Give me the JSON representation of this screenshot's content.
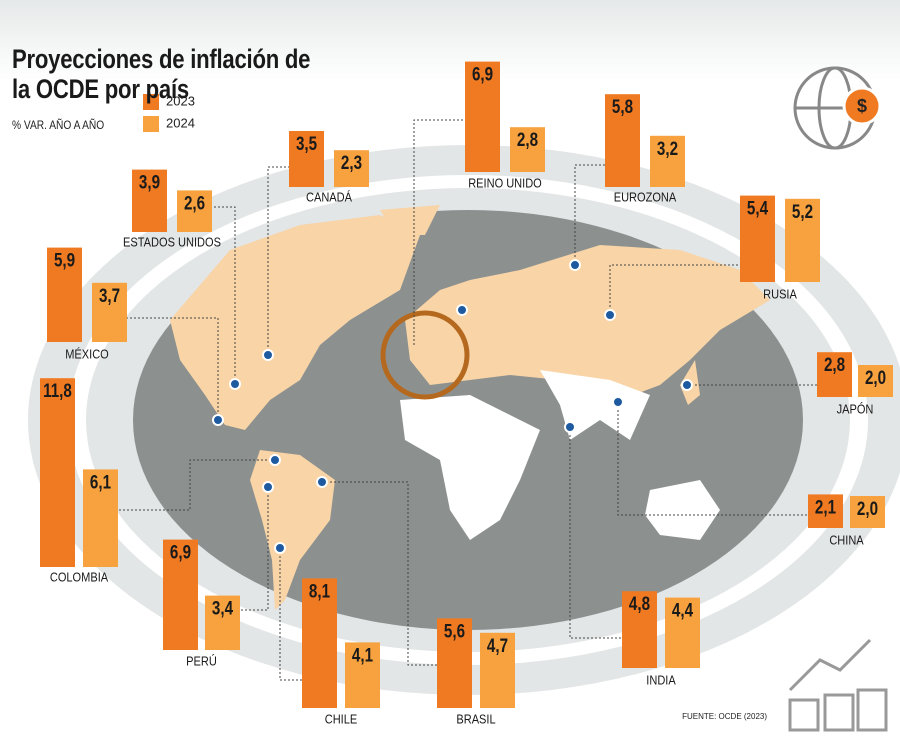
{
  "chart_data": {
    "type": "bar",
    "title": "Proyecciones de inflación de la OCDE por país",
    "subtitle": "% VAR. AÑO A AÑO",
    "source": "FUENTE: OCDE (2023)",
    "categories": [
      "CANADÁ",
      "REINO UNIDO",
      "EUROZONA",
      "ESTADOS UNIDOS",
      "RUSIA",
      "MÉXICO",
      "JAPÓN",
      "COLOMBIA",
      "CHINA",
      "PERÚ",
      "CHILE",
      "BRASIL",
      "INDIA"
    ],
    "series": [
      {
        "name": "2023",
        "color": "#f07a22",
        "values": [
          3.5,
          6.9,
          5.8,
          3.9,
          5.4,
          5.9,
          2.8,
          11.8,
          2.1,
          6.9,
          8.1,
          5.6,
          4.8
        ],
        "value_labels": [
          "3,5",
          "6,9",
          "5,8",
          "3,9",
          "5,4",
          "5,9",
          "2,8",
          "11,8",
          "2,1",
          "6,9",
          "8,1",
          "5,6",
          "4,8"
        ]
      },
      {
        "name": "2024",
        "color": "#f7a23e",
        "values": [
          2.3,
          2.8,
          3.2,
          2.6,
          5.2,
          3.7,
          2.0,
          6.1,
          2.0,
          3.4,
          4.1,
          4.7,
          4.4
        ],
        "value_labels": [
          "2,3",
          "2,8",
          "3,2",
          "2,6",
          "5,2",
          "3,7",
          "2,0",
          "6,1",
          "2,0",
          "3,4",
          "4,1",
          "4,7",
          "4,4"
        ]
      }
    ]
  }
}
